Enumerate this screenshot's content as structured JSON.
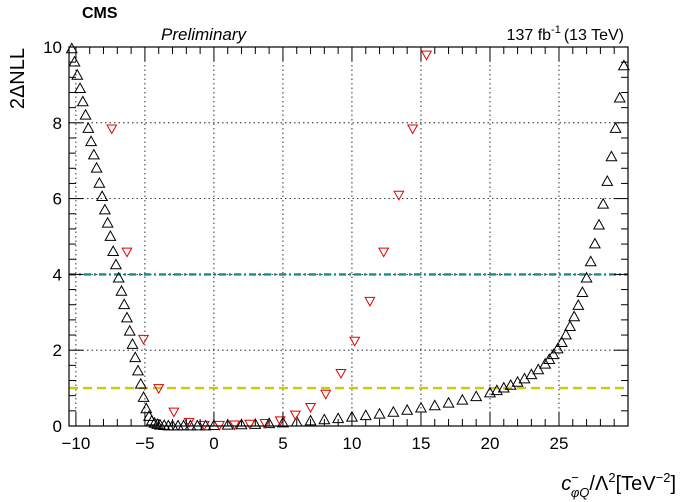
{
  "header": {
    "experiment": "CMS",
    "status": "Preliminary",
    "lumi_value": "137 fb",
    "lumi_exp": "-1",
    "energy": "(13 TeV)"
  },
  "axes": {
    "ylabel": "2ΔNLL",
    "xlabel": {
      "c": "c",
      "sup": "−",
      "sub": "φQ",
      "mid": "/Λ",
      "mid_sup": "2",
      "unit_open": "[TeV",
      "unit_sup": "−2",
      "unit_close": "]"
    }
  },
  "chart_data": {
    "type": "scatter",
    "title": "",
    "xlabel": "c⁻φQ/Λ²[TeV⁻²]",
    "ylabel": "2ΔNLL",
    "xlim": [
      -10.5,
      30
    ],
    "ylim": [
      0,
      10
    ],
    "grid": true,
    "xticks": [
      -10,
      -5,
      0,
      5,
      10,
      15,
      20,
      25
    ],
    "yticks": [
      0,
      2,
      4,
      6,
      8,
      10
    ],
    "series": [
      {
        "marker": "open-triangle-up",
        "color": "#000000",
        "x": [
          -10.3,
          -10.1,
          -9.9,
          -9.7,
          -9.5,
          -9.3,
          -9.1,
          -8.9,
          -8.7,
          -8.5,
          -8.3,
          -8.1,
          -7.9,
          -7.7,
          -7.5,
          -7.3,
          -7.1,
          -6.9,
          -6.7,
          -6.5,
          -6.3,
          -6.1,
          -5.9,
          -5.7,
          -5.5,
          -5.3,
          -5.1,
          -4.9,
          -4.7,
          -4.5,
          -4.3,
          -4.1,
          -3.9,
          -3.6,
          -3.3,
          -3.0,
          -2.6,
          -2.2,
          -1.7,
          -1.2,
          -0.6,
          0,
          1,
          2,
          3,
          4,
          5,
          6,
          7,
          8,
          9,
          10,
          11,
          12,
          13,
          14,
          15,
          16,
          17,
          18,
          19,
          20,
          20.5,
          21,
          21.5,
          22,
          22.5,
          23,
          23.5,
          24,
          24.3,
          24.6,
          24.9,
          25.2,
          25.5,
          25.8,
          26.1,
          26.4,
          26.7,
          27.0,
          27.3,
          27.6,
          27.9,
          28.2,
          28.5,
          28.8,
          29.1,
          29.4,
          29.7
        ],
        "y": [
          9.95,
          9.6,
          9.25,
          8.9,
          8.55,
          8.2,
          7.85,
          7.5,
          7.15,
          6.8,
          6.4,
          6.05,
          5.7,
          5.35,
          5.0,
          4.6,
          4.25,
          3.9,
          3.55,
          3.2,
          2.85,
          2.5,
          2.15,
          1.8,
          1.45,
          1.1,
          0.75,
          0.45,
          0.25,
          0.13,
          0.07,
          0.04,
          0.02,
          0.01,
          0.0,
          0.0,
          0.0,
          0.0,
          0.0,
          0.0,
          0.0,
          0.01,
          0.02,
          0.03,
          0.04,
          0.06,
          0.08,
          0.1,
          0.13,
          0.16,
          0.19,
          0.23,
          0.27,
          0.31,
          0.36,
          0.41,
          0.47,
          0.53,
          0.6,
          0.68,
          0.77,
          0.87,
          0.93,
          1.0,
          1.07,
          1.15,
          1.24,
          1.35,
          1.48,
          1.63,
          1.75,
          1.88,
          2.03,
          2.2,
          2.4,
          2.62,
          2.88,
          3.18,
          3.52,
          3.9,
          4.33,
          4.8,
          5.3,
          5.85,
          6.45,
          7.1,
          7.85,
          8.65,
          9.5
        ]
      },
      {
        "marker": "open-triangle-down",
        "color": "#e00000",
        "x": [
          -7.4,
          -6.3,
          -5.1,
          -4.0,
          -2.9,
          -1.8,
          -0.7,
          0.4,
          1.5,
          2.6,
          3.7,
          4.8,
          5.9,
          7.0,
          8.1,
          9.2,
          10.2,
          11.3,
          12.3,
          13.4,
          14.4,
          15.4
        ],
        "y": [
          7.85,
          4.6,
          2.3,
          1.0,
          0.38,
          0.11,
          0.03,
          0.03,
          0.04,
          0.06,
          0.08,
          0.15,
          0.3,
          0.5,
          0.85,
          1.4,
          2.25,
          3.3,
          4.6,
          6.1,
          7.85,
          9.8
        ]
      }
    ],
    "reference_lines": [
      {
        "y": 4,
        "color": "#1a8a8a",
        "style": "dash-dot"
      },
      {
        "y": 1,
        "color": "#cccc00",
        "style": "dashed"
      }
    ]
  }
}
